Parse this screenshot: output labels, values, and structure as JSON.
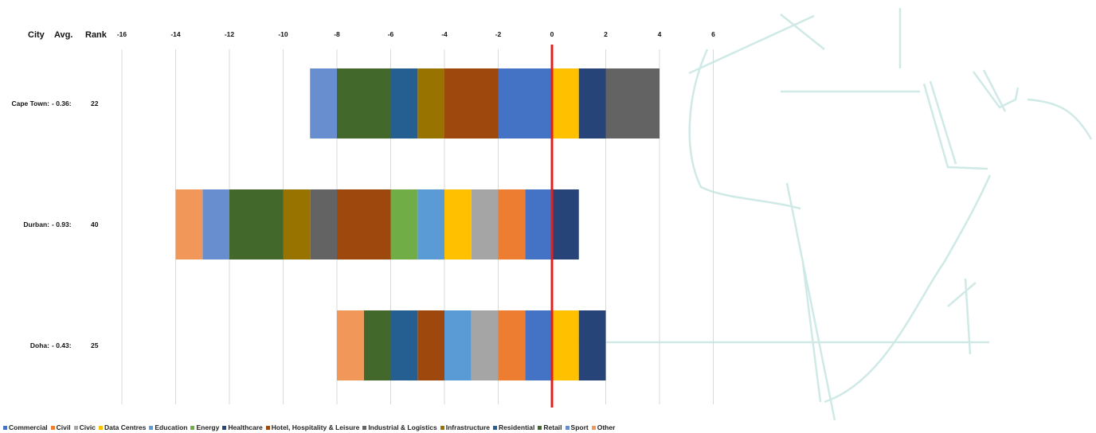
{
  "chart_data": {
    "type": "bar",
    "orientation": "horizontal",
    "stacked": true,
    "header": {
      "city": "City",
      "avg": "Avg.",
      "rank": "Rank"
    },
    "xlim": [
      -16,
      6
    ],
    "xticks": [
      -16,
      -14,
      -12,
      -10,
      -8,
      -6,
      -4,
      -2,
      0,
      2,
      4,
      6
    ],
    "reference_line": {
      "x": 0,
      "color": "#E02020"
    },
    "categories": [
      {
        "city": "Cape Town:",
        "avg": "- 0.36:",
        "rank": "22"
      },
      {
        "city": "Durban:",
        "avg": "- 0.93:",
        "rank": "40"
      },
      {
        "city": "Doha:",
        "avg": "- 0.43:",
        "rank": "25"
      }
    ],
    "sectors": [
      {
        "name": "Commercial",
        "color": "#4472C4"
      },
      {
        "name": "Civil",
        "color": "#ED7D31"
      },
      {
        "name": "Civic",
        "color": "#A5A5A5"
      },
      {
        "name": "Data Centres",
        "color": "#FFC000"
      },
      {
        "name": "Education",
        "color": "#5B9BD5"
      },
      {
        "name": "Energy",
        "color": "#70AD47"
      },
      {
        "name": "Healthcare",
        "color": "#264478"
      },
      {
        "name": "Hotel, Hospitality & Leisure",
        "color": "#9E480E"
      },
      {
        "name": "Industrial & Logistics",
        "color": "#636363"
      },
      {
        "name": "Infrastructure",
        "color": "#997300"
      },
      {
        "name": "Residential",
        "color": "#255E91"
      },
      {
        "name": "Retail",
        "color": "#43682B"
      },
      {
        "name": "Sport",
        "color": "#698ED0"
      },
      {
        "name": "Other",
        "color": "#F1975A"
      }
    ],
    "rows": [
      {
        "negative": [
          {
            "sector": "Commercial",
            "value": -2
          },
          {
            "sector": "Hotel, Hospitality & Leisure",
            "value": -2
          },
          {
            "sector": "Infrastructure",
            "value": -1
          },
          {
            "sector": "Residential",
            "value": -1
          },
          {
            "sector": "Retail",
            "value": -2
          },
          {
            "sector": "Sport",
            "value": -1
          }
        ],
        "positive": [
          {
            "sector": "Data Centres",
            "value": 1
          },
          {
            "sector": "Healthcare",
            "value": 1
          },
          {
            "sector": "Industrial & Logistics",
            "value": 2
          }
        ]
      },
      {
        "negative": [
          {
            "sector": "Commercial",
            "value": -1
          },
          {
            "sector": "Civil",
            "value": -1
          },
          {
            "sector": "Civic",
            "value": -1
          },
          {
            "sector": "Data Centres",
            "value": -1
          },
          {
            "sector": "Education",
            "value": -1
          },
          {
            "sector": "Energy",
            "value": -1
          },
          {
            "sector": "Hotel, Hospitality & Leisure",
            "value": -2
          },
          {
            "sector": "Industrial & Logistics",
            "value": -1
          },
          {
            "sector": "Infrastructure",
            "value": -1
          },
          {
            "sector": "Retail",
            "value": -2
          },
          {
            "sector": "Sport",
            "value": -1
          },
          {
            "sector": "Other",
            "value": -1
          }
        ],
        "positive": [
          {
            "sector": "Healthcare",
            "value": 1
          }
        ]
      },
      {
        "negative": [
          {
            "sector": "Commercial",
            "value": -1
          },
          {
            "sector": "Civil",
            "value": -1
          },
          {
            "sector": "Civic",
            "value": -1
          },
          {
            "sector": "Education",
            "value": -1
          },
          {
            "sector": "Hotel, Hospitality & Leisure",
            "value": -1
          },
          {
            "sector": "Residential",
            "value": -1
          },
          {
            "sector": "Retail",
            "value": -1
          },
          {
            "sector": "Other",
            "value": -1
          }
        ],
        "positive": [
          {
            "sector": "Data Centres",
            "value": 1
          },
          {
            "sector": "Healthcare",
            "value": 1
          }
        ]
      }
    ],
    "legend_position": "bottom",
    "grid": true,
    "decoration_color": "#CFEAE6"
  }
}
